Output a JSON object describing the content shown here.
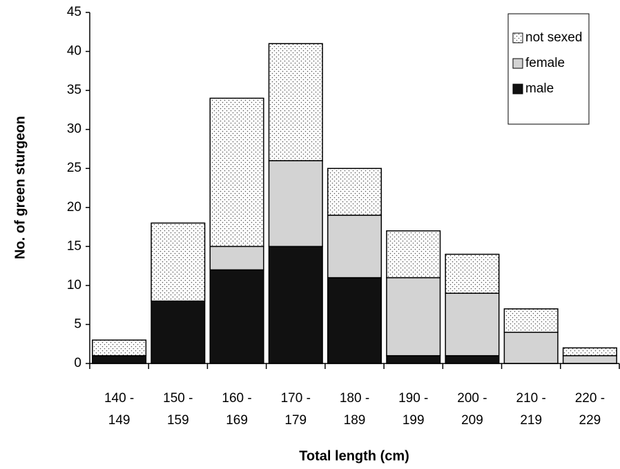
{
  "chart_data": {
    "type": "stacked-bar",
    "x_label": "Total length (cm)",
    "y_label": "No. of green sturgeon",
    "categories": [
      "140 -\n149",
      "150 -\n159",
      "160 -\n169",
      "170 -\n179",
      "180 -\n189",
      "190 -\n199",
      "200 -\n209",
      "210 -\n219",
      "220 -\n229"
    ],
    "series": [
      {
        "name": "male",
        "color": "#111111",
        "values": [
          1,
          8,
          12,
          15,
          11,
          1,
          1,
          0,
          0
        ]
      },
      {
        "name": "female",
        "color": "#d3d3d3",
        "values": [
          0,
          0,
          3,
          11,
          8,
          10,
          8,
          4,
          1
        ]
      },
      {
        "name": "not sexed",
        "color": "#ffffff",
        "pattern": "dots",
        "values": [
          2,
          10,
          19,
          15,
          6,
          6,
          5,
          3,
          1
        ]
      }
    ],
    "ylim": [
      0,
      45
    ],
    "yticks": [
      0,
      5,
      10,
      15,
      20,
      25,
      30,
      35,
      40,
      45
    ],
    "grid": false,
    "legend": "upper right"
  }
}
